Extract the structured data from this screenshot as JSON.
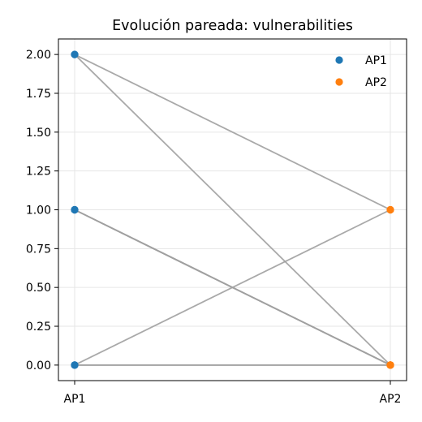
{
  "chart_data": {
    "type": "scatter",
    "title": "Evolución pareada: vulnerabilities",
    "xlabel": "",
    "ylabel": "",
    "categories": [
      "AP1",
      "AP2"
    ],
    "ylim": [
      -0.1,
      2.1
    ],
    "yticks": [
      "0.00",
      "0.25",
      "0.50",
      "0.75",
      "1.00",
      "1.25",
      "1.50",
      "1.75",
      "2.00"
    ],
    "grid": true,
    "legend_position": "top-right",
    "series": [
      {
        "name": "AP1",
        "color": "#1f77b4"
      },
      {
        "name": "AP2",
        "color": "#ff7f0e"
      }
    ],
    "line_color": "#a0a0a0",
    "pairs": [
      {
        "AP1": 2,
        "AP2": 1
      },
      {
        "AP1": 2,
        "AP2": 0
      },
      {
        "AP1": 1,
        "AP2": 0
      },
      {
        "AP1": 1,
        "AP2": 0
      },
      {
        "AP1": 1,
        "AP2": 0
      },
      {
        "AP1": 0,
        "AP2": 1
      },
      {
        "AP1": 0,
        "AP2": 0
      },
      {
        "AP1": 0,
        "AP2": 0
      }
    ]
  }
}
